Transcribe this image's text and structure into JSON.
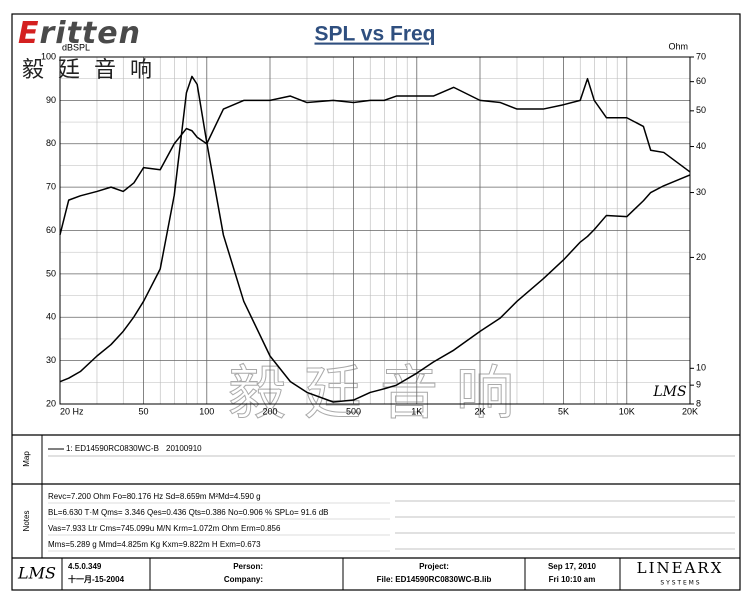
{
  "header": {
    "logo": "Eritten",
    "logo_cn": "毅廷音响"
  },
  "chart_data": {
    "type": "line",
    "title": "SPL vs Freq",
    "y_label": "dBSPL",
    "y2_label": "Ohm",
    "watermark": "毅廷音响",
    "badge": "LMS",
    "xscale": "log",
    "y2scale": "log",
    "grid": true,
    "x": [
      20,
      22,
      25,
      30,
      35,
      40,
      45,
      50,
      60,
      70,
      80,
      85,
      90,
      100,
      120,
      150,
      200,
      250,
      300,
      400,
      500,
      600,
      700,
      800,
      1000,
      1200,
      1500,
      2000,
      2500,
      3000,
      4000,
      5000,
      6000,
      6500,
      7000,
      8000,
      10000,
      12000,
      13000,
      15000,
      20000
    ],
    "series": [
      {
        "color": "#000000",
        "values": [
          59,
          67,
          68,
          69,
          70,
          69,
          71,
          74.5,
          74,
          80,
          83.5,
          83,
          81.5,
          80,
          88,
          90,
          90,
          91,
          89.5,
          90,
          89.5,
          90,
          90,
          91,
          91,
          91,
          93,
          90,
          89.5,
          88,
          88,
          89,
          90,
          95,
          90,
          86,
          86,
          84,
          78.5,
          78,
          73.5
        ]
      },
      {
        "color": "#000000",
        "axis": "y2",
        "values": [
          9.2,
          9.4,
          9.8,
          10.8,
          11.6,
          12.6,
          13.8,
          15.2,
          18.6,
          29.5,
          56,
          62,
          59,
          41,
          23,
          15.2,
          10.8,
          9.2,
          8.6,
          8.1,
          8.2,
          8.6,
          8.8,
          9.0,
          9.7,
          10.4,
          11.2,
          12.6,
          13.7,
          15.2,
          17.5,
          19.7,
          22,
          22.8,
          23.8,
          26,
          25.8,
          28.5,
          30,
          31.3,
          33.5
        ]
      }
    ],
    "xlim": [
      20,
      20000
    ],
    "xticks": [
      {
        "value": 20,
        "label": "20  Hz"
      },
      50,
      100,
      200,
      500,
      {
        "value": 1000,
        "label": "1K"
      },
      {
        "value": 2000,
        "label": "2K"
      },
      {
        "value": 5000,
        "label": "5K"
      },
      {
        "value": 10000,
        "label": "10K"
      },
      {
        "value": 20000,
        "label": "20K"
      }
    ],
    "xminorticks": [
      30,
      40,
      60,
      70,
      80,
      90,
      300,
      400,
      600,
      700,
      800,
      900,
      3000,
      4000,
      6000,
      7000,
      8000,
      9000
    ],
    "ylim": [
      20,
      100
    ],
    "yticks": [
      20,
      30,
      40,
      50,
      60,
      70,
      80,
      90,
      100
    ],
    "yminorticks": [
      25,
      35,
      45,
      55,
      65,
      75,
      85,
      95
    ],
    "y2lim": [
      8,
      70
    ],
    "y2ticks": [
      8,
      9,
      10,
      20,
      30,
      40,
      50,
      60,
      70
    ]
  },
  "legend": {
    "panel": "Map",
    "entry": "1: ED14590RC0830WC-B",
    "date": "20100910"
  },
  "notes": {
    "panel": "Notes",
    "lines": [
      "Revc=7.200 Ohm  Fo=80.176 Hz  Sd=8.659m M²Md=4.590 g",
      "BL=6.630 T·M  Qms= 3.346  Qes=0.436  Qts=0.386  No=0.906 %  SPLo= 91.6 dB",
      "Vas=7.933 Ltr  Cms=745.099u M/N  Krm=1.072m Ohm  Erm=0.856",
      "Mms=5.289 g  Mmd=4.825m Kg  Kxm=9.822m H  Exm=0.673"
    ]
  },
  "footer": {
    "software": "LMS",
    "version": "4.5.0.349",
    "build_date": "十一月-15-2004",
    "person": "Person:",
    "company": "Company:",
    "project": "Project:",
    "file": "File: ED14590RC0830WC-B.lib",
    "date": "Sep 17, 2010",
    "time": "Fri 10:10 am",
    "brand": "LINEARX",
    "brand_sub": "S Y S T E M S"
  }
}
